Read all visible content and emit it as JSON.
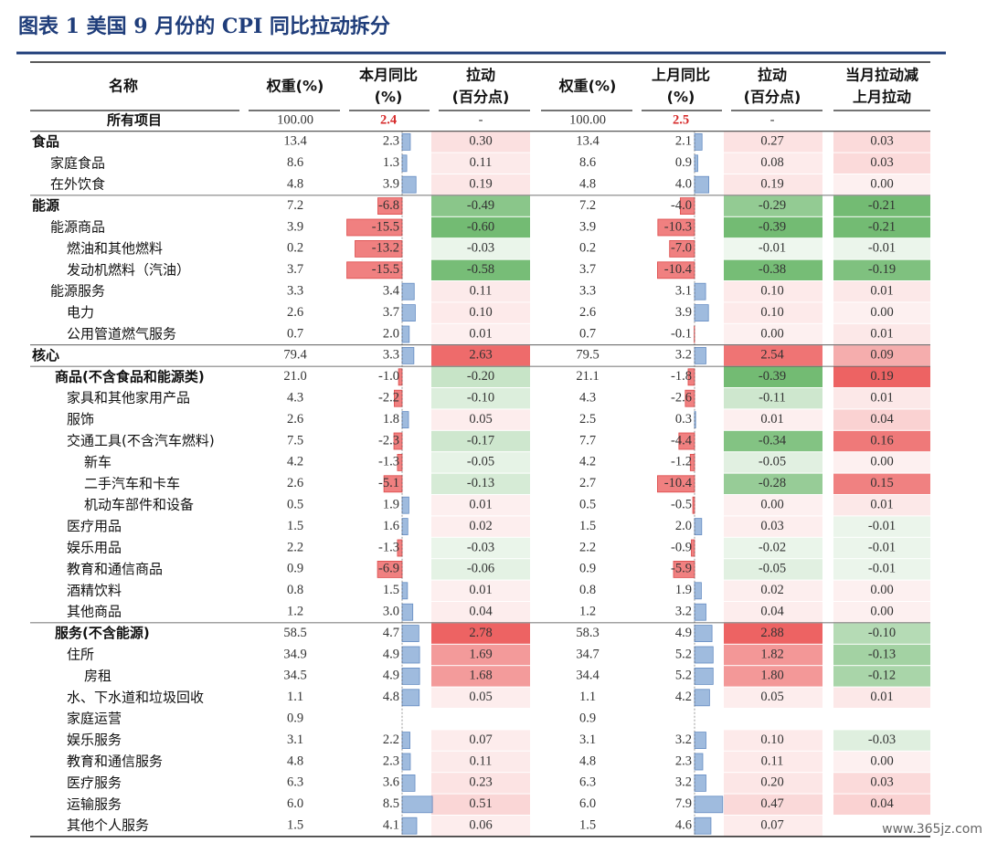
{
  "title": "图表 1 美国 9 月份的 CPI 同比拉动拆分",
  "watermark": "www.365jz.com",
  "table": {
    "header": [
      [
        "名称"
      ],
      [
        "权重(%)"
      ],
      [
        "本月同比",
        "(%)"
      ],
      [
        "拉动",
        "(百分点)"
      ],
      [
        "权重(%)"
      ],
      [
        "上月同比",
        "(%)"
      ],
      [
        "拉动",
        "(百分点)"
      ],
      [
        "当月拉动减",
        "上月拉动"
      ]
    ],
    "rows": [
      [
        "所有项目",
        "100.00",
        "2.4",
        "-",
        "100.00",
        "2.5",
        "-",
        null
      ],
      [
        "食品",
        "13.4",
        "2.3",
        "0.30",
        "13.4",
        "2.1",
        "0.27",
        "0.03"
      ],
      [
        "家庭食品",
        "8.6",
        "1.3",
        "0.11",
        "8.6",
        "0.9",
        "0.08",
        "0.03"
      ],
      [
        "在外饮食",
        "4.8",
        "3.9",
        "0.19",
        "4.8",
        "4.0",
        "0.19",
        "0.00"
      ],
      [
        "能源",
        "7.2",
        "-6.8",
        "-0.49",
        "7.2",
        "-4.0",
        "-0.29",
        "-0.21"
      ],
      [
        "能源商品",
        "3.9",
        "-15.5",
        "-0.60",
        "3.9",
        "-10.3",
        "-0.39",
        "-0.21"
      ],
      [
        "燃油和其他燃料",
        "0.2",
        "-13.2",
        "-0.03",
        "0.2",
        "-7.0",
        "-0.01",
        "-0.01"
      ],
      [
        "发动机燃料（汽油）",
        "3.7",
        "-15.5",
        "-0.58",
        "3.7",
        "-10.4",
        "-0.38",
        "-0.19"
      ],
      [
        "能源服务",
        "3.3",
        "3.4",
        "0.11",
        "3.3",
        "3.1",
        "0.10",
        "0.01"
      ],
      [
        "电力",
        "2.6",
        "3.7",
        "0.10",
        "2.6",
        "3.9",
        "0.10",
        "0.00"
      ],
      [
        "公用管道燃气服务",
        "0.7",
        "2.0",
        "0.01",
        "0.7",
        "-0.1",
        "0.00",
        "0.01"
      ],
      [
        "核心",
        "79.4",
        "3.3",
        "2.63",
        "79.5",
        "3.2",
        "2.54",
        "0.09"
      ],
      [
        "商品(不含食品和能源类)",
        "21.0",
        "-1.0",
        "-0.20",
        "21.1",
        "-1.8",
        "-0.39",
        "0.19"
      ],
      [
        "家具和其他家用产品",
        "4.3",
        "-2.2",
        "-0.10",
        "4.3",
        "-2.6",
        "-0.11",
        "0.01"
      ],
      [
        "服饰",
        "2.6",
        "1.8",
        "0.05",
        "2.5",
        "0.3",
        "0.01",
        "0.04"
      ],
      [
        "交通工具(不含汽车燃料)",
        "7.5",
        "-2.3",
        "-0.17",
        "7.7",
        "-4.4",
        "-0.34",
        "0.16"
      ],
      [
        "新车",
        "4.2",
        "-1.3",
        "-0.05",
        "4.2",
        "-1.2",
        "-0.05",
        "0.00"
      ],
      [
        "二手汽车和卡车",
        "2.6",
        "-5.1",
        "-0.13",
        "2.7",
        "-10.4",
        "-0.28",
        "0.15"
      ],
      [
        "机动车部件和设备",
        "0.5",
        "1.9",
        "0.01",
        "0.5",
        "-0.5",
        "0.00",
        "0.01"
      ],
      [
        "医疗用品",
        "1.5",
        "1.6",
        "0.02",
        "1.5",
        "2.0",
        "0.03",
        "-0.01"
      ],
      [
        "娱乐用品",
        "2.2",
        "-1.3",
        "-0.03",
        "2.2",
        "-0.9",
        "-0.02",
        "-0.01"
      ],
      [
        "教育和通信商品",
        "0.9",
        "-6.9",
        "-0.06",
        "0.9",
        "-5.9",
        "-0.05",
        "-0.01"
      ],
      [
        "酒精饮料",
        "0.8",
        "1.5",
        "0.01",
        "0.8",
        "1.9",
        "0.02",
        "0.00"
      ],
      [
        "其他商品",
        "1.2",
        "3.0",
        "0.04",
        "1.2",
        "3.2",
        "0.04",
        "0.00"
      ],
      [
        "服务(不含能源)",
        "58.5",
        "4.7",
        "2.78",
        "58.3",
        "4.9",
        "2.88",
        "-0.10"
      ],
      [
        "住所",
        "34.9",
        "4.9",
        "1.69",
        "34.7",
        "5.2",
        "1.82",
        "-0.13"
      ],
      [
        "房租",
        "34.5",
        "4.9",
        "1.68",
        "34.4",
        "5.2",
        "1.80",
        "-0.12"
      ],
      [
        "水、下水道和垃圾回收",
        "1.1",
        "4.8",
        "0.05",
        "1.1",
        "4.2",
        "0.05",
        "0.01"
      ],
      [
        "家庭运营",
        "0.9",
        null,
        null,
        "0.9",
        null,
        null,
        null
      ],
      [
        "娱乐服务",
        "3.1",
        "2.2",
        "0.07",
        "3.1",
        "3.2",
        "0.10",
        "-0.03"
      ],
      [
        "教育和通信服务",
        "4.8",
        "2.3",
        "0.11",
        "4.8",
        "2.3",
        "0.11",
        "0.00"
      ],
      [
        "医疗服务",
        "6.3",
        "3.6",
        "0.23",
        "6.3",
        "3.2",
        "0.20",
        "0.03"
      ],
      [
        "运输服务",
        "6.0",
        "8.5",
        "0.51",
        "6.0",
        "7.9",
        "0.47",
        "0.04"
      ],
      [
        "其他个人服务",
        "1.5",
        "4.1",
        "0.06",
        "1.5",
        "4.6",
        "0.07",
        null
      ]
    ]
  }
}
